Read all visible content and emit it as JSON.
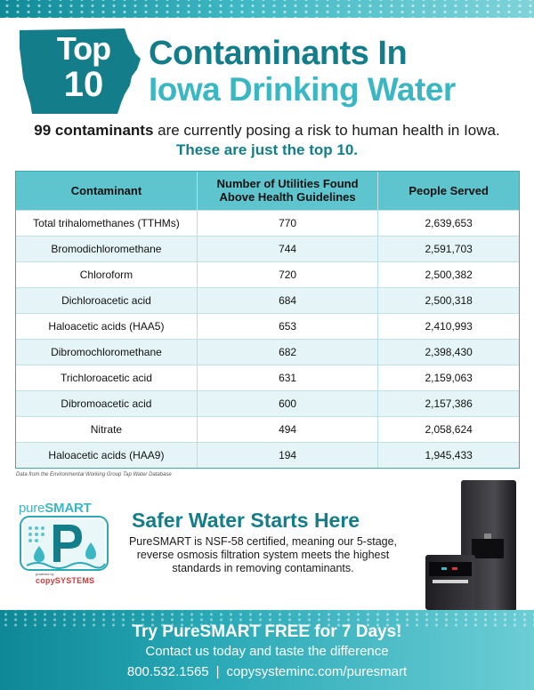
{
  "header": {
    "badge_top": "Top",
    "badge_num": "10",
    "title_line1": "Contaminants In",
    "title_line2": "Iowa Drinking Water",
    "intro_bold": "99 contaminants",
    "intro_rest": " are currently posing a risk to human health in Iowa.",
    "intro2_lead": "These are just the ",
    "intro2_bold": "top 10."
  },
  "table": {
    "headers": [
      "Contaminant",
      "Number of Utilities Found Above Health Guidelines",
      "People Served"
    ],
    "rows": [
      [
        "Total trihalomethanes (TTHMs)",
        "770",
        "2,639,653"
      ],
      [
        "Bromodichloromethane",
        "744",
        "2,591,703"
      ],
      [
        "Chloroform",
        "720",
        "2,500,382"
      ],
      [
        "Dichloroacetic acid",
        "684",
        "2,500,318"
      ],
      [
        "Haloacetic acids (HAA5)",
        "653",
        "2,410,993"
      ],
      [
        "Dibromochloromethane",
        "682",
        "2,398,430"
      ],
      [
        "Trichloroacetic acid",
        "631",
        "2,159,063"
      ],
      [
        "Dibromoacetic acid",
        "600",
        "2,157,386"
      ],
      [
        "Nitrate",
        "494",
        "2,058,624"
      ],
      [
        "Haloacetic acids (HAA9)",
        "194",
        "1,945,433"
      ]
    ],
    "source": "Data from the Environmental Working Group Tap Water Database"
  },
  "promo": {
    "logo_pure": "pure",
    "logo_smart": "SMART",
    "logo_powered": "powered by",
    "logo_company": "copySYSTEMS",
    "title": "Safer Water Starts Here",
    "body": "PureSMART is NSF-58 certified, meaning our 5-stage, reverse osmosis filtration system meets the highest standards in removing contaminants."
  },
  "footer": {
    "cta": "Try PureSMART FREE for 7 Days!",
    "contact": "Contact us today and taste the difference",
    "phone": "800.532.1565",
    "separator": "|",
    "website": "copysysteminc.com/puresmart"
  },
  "colors": {
    "brand_teal_dark": "#147d8a",
    "brand_teal_light": "#3ab7c3",
    "table_header": "#5ec5cf",
    "row_alt": "#e5f5f7",
    "accent_red": "#d23a3a"
  }
}
